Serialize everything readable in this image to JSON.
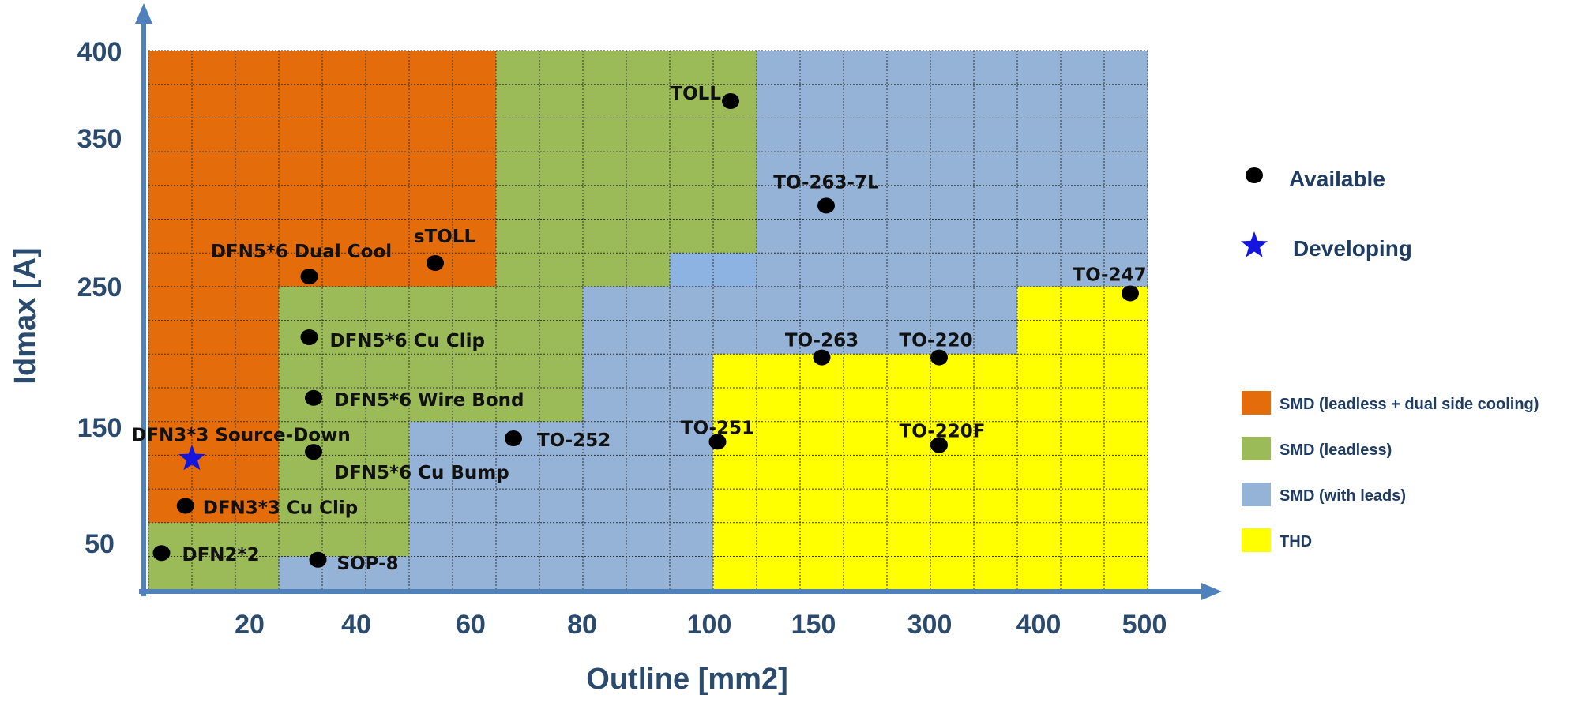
{
  "chart_data": {
    "type": "scatter",
    "xlabel": "Outline [mm2]",
    "ylabel": "Idmax [A]",
    "x_ticks": [
      "20",
      "40",
      "60",
      "80",
      "100",
      "150",
      "300",
      "400",
      "500"
    ],
    "y_ticks": [
      "50",
      "150",
      "250",
      "350",
      "400"
    ],
    "legend": {
      "markers": [
        {
          "name": "Available",
          "shape": "circle",
          "color": "#000000"
        },
        {
          "name": "Developing",
          "shape": "star",
          "color": "#1515e0"
        }
      ],
      "regions": [
        {
          "name": "SMD (leadless + dual side cooling)",
          "color": "#e46c0a"
        },
        {
          "name": "SMD (leadless)",
          "color": "#9bbb59"
        },
        {
          "name": "SMD (with leads)",
          "color": "#95b3d7"
        },
        {
          "name": "THD",
          "color": "#ffff00"
        }
      ]
    },
    "region_colors": {
      "O": "#e46c0a",
      "G": "#9bbb59",
      "B": "#95b3d7",
      "L": "#8db3e2",
      "Y": "#ffff00"
    },
    "grid_rows": [
      "OOOOOOOOGGGGGGBBBBBBBBB",
      "OOOOOOOOGGGGGGBBBBBBBBB",
      "OOOOOOOOGGGGGGBBBBBBBBB",
      "OOOOOOOOGGGGGGBBBBBBBBB",
      "OOOOOOOOGGGGGGBBBBBBBBB",
      "OOOOOOOOGGGGGGBBBBBBBBB",
      "OOOOOOOOGGGGLLBBBBBBBBB",
      "OOOGGGGGGGBBBBBBBBBBYYY",
      "OOOGGGGGGGBBBBBBBBBBYYY",
      "OOOGGGGGGGBBBYYYYYYYYYY",
      "OOOGGGGGGGBBBYYYYYYYYYY",
      "OOOGGGBBBBBBBYYYYYYYYYY",
      "OOOGGGBBBBBBBYYYYYYYYYY",
      "OOOGGGBBBBBBBYYYYYYYYYY",
      "GGGGGGBBBBBBBYYYYYYYYYY",
      "GGGBBBBBBBBBBYYYYYYYYYY"
    ],
    "points": [
      {
        "label": "TOLL",
        "x": 13.4,
        "y": 14.5,
        "status": "Available"
      },
      {
        "label": "TO-263-7L",
        "x": 15.6,
        "y": 11.4,
        "status": "Available"
      },
      {
        "label": "sTOLL",
        "x": 6.6,
        "y": 9.7,
        "status": "Available"
      },
      {
        "label": "DFN5*6 Dual Cool",
        "x": 3.7,
        "y": 9.3,
        "status": "Available"
      },
      {
        "label": "TO-247",
        "x": 22.6,
        "y": 8.8,
        "status": "Available"
      },
      {
        "label": "DFN5*6 Cu Clip",
        "x": 3.7,
        "y": 7.5,
        "status": "Available"
      },
      {
        "label": "TO-263",
        "x": 15.5,
        "y": 6.9,
        "status": "Available"
      },
      {
        "label": "TO-220",
        "x": 18.2,
        "y": 6.9,
        "status": "Available"
      },
      {
        "label": "DFN5*6 Wire Bond",
        "x": 3.8,
        "y": 5.7,
        "status": "Available"
      },
      {
        "label": "TO-252",
        "x": 8.4,
        "y": 4.5,
        "status": "Available"
      },
      {
        "label": "TO-251",
        "x": 13.1,
        "y": 4.4,
        "status": "Available"
      },
      {
        "label": "TO-220F",
        "x": 18.2,
        "y": 4.3,
        "status": "Available"
      },
      {
        "label": "DFN5*6 Cu Bump",
        "x": 3.8,
        "y": 4.1,
        "status": "Available"
      },
      {
        "label": "DFN3*3 Source-Down",
        "x": 1.0,
        "y": 3.9,
        "status": "Developing"
      },
      {
        "label": "DFN3*3 Cu Clip",
        "x": 0.85,
        "y": 2.5,
        "status": "Available"
      },
      {
        "label": "DFN2*2",
        "x": 0.3,
        "y": 1.1,
        "status": "Available"
      },
      {
        "label": "SOP-8",
        "x": 3.9,
        "y": 0.9,
        "status": "Available"
      }
    ]
  }
}
